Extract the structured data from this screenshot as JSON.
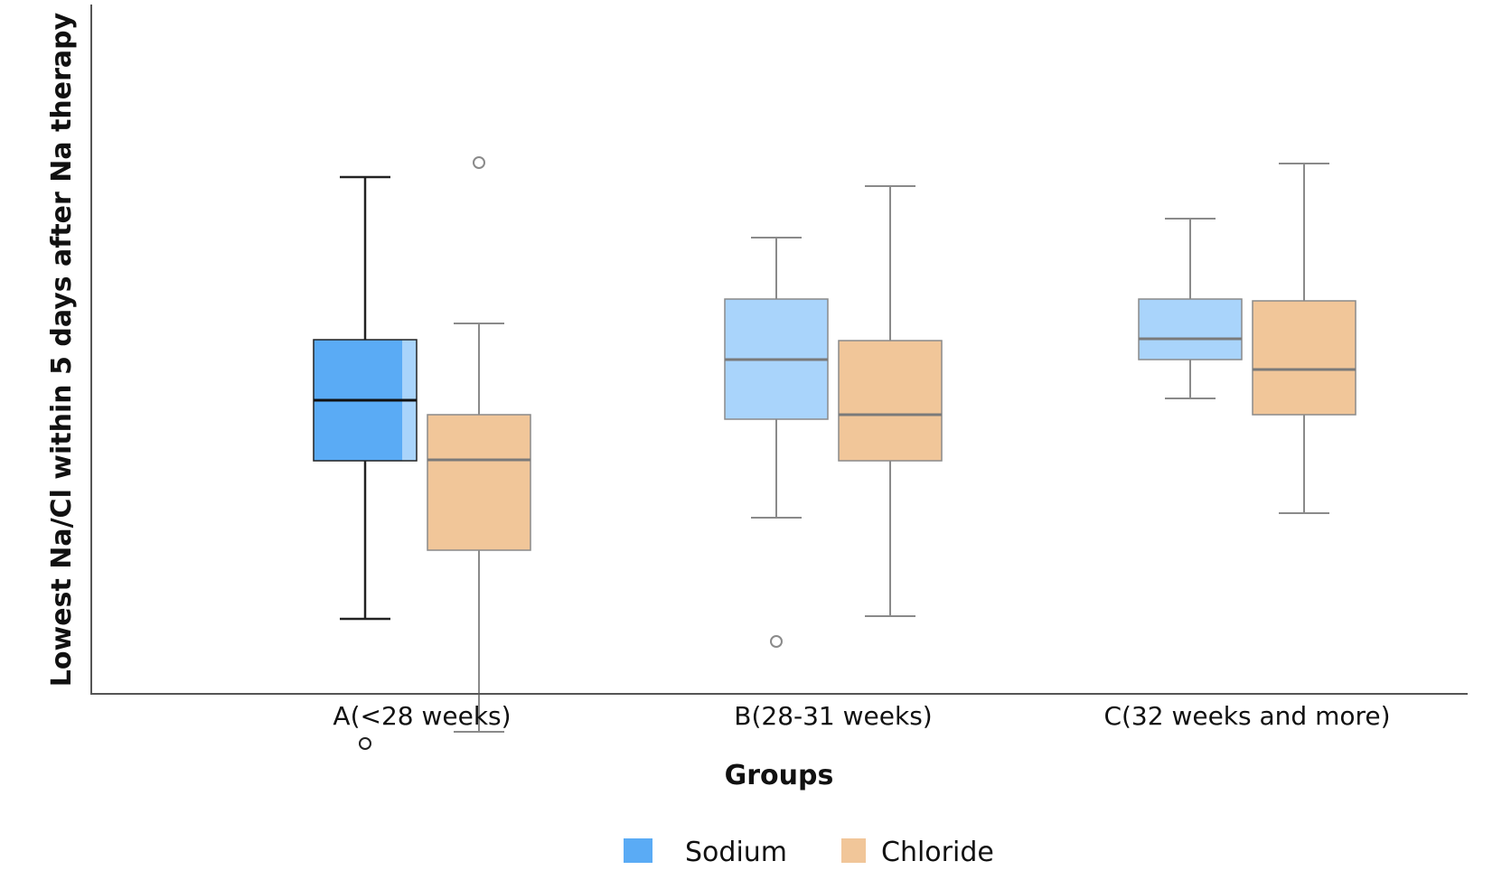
{
  "chart_data": {
    "type": "boxplot",
    "title": "",
    "xlabel": "Groups",
    "ylabel": "Lowest Na/Cl within 5 days after Na therapy",
    "ylim": [
      0,
      100
    ],
    "y_ticks_shown": false,
    "grid": false,
    "legend_position": "bottom",
    "categories": [
      "A(<28 weeks)",
      "B(28-31 weeks)",
      "C(32 weeks and more)"
    ],
    "series": [
      {
        "name": "Sodium",
        "color": "#5aabf5",
        "light_color": "#a9d4fb",
        "boxes": [
          {
            "whisker_low": 31.5,
            "q1": 49,
            "median": 55.7,
            "q3": 62.4,
            "whisker_high": 80.4,
            "outliers": [
              17.7
            ]
          },
          {
            "whisker_low": 42.7,
            "q1": 53.6,
            "median": 60.2,
            "q3": 66.9,
            "whisker_high": 73.7,
            "outliers": [
              29
            ]
          },
          {
            "whisker_low": 55.9,
            "q1": 60.2,
            "median": 62.5,
            "q3": 66.9,
            "whisker_high": 75.8,
            "outliers": []
          }
        ]
      },
      {
        "name": "Chloride",
        "color": "#f1c699",
        "light_color": "#f1c699",
        "boxes": [
          {
            "whisker_low": 19,
            "q1": 39.1,
            "median": 49.1,
            "q3": 54.1,
            "whisker_high": 64.2,
            "outliers": [
              82
            ]
          },
          {
            "whisker_low": 31.8,
            "q1": 49,
            "median": 54.1,
            "q3": 62.3,
            "whisker_high": 79.4,
            "outliers": []
          },
          {
            "whisker_low": 43.2,
            "q1": 54.1,
            "median": 59.1,
            "q3": 66.7,
            "whisker_high": 81.9,
            "outliers": []
          }
        ]
      }
    ]
  },
  "legend": {
    "items": [
      {
        "label": "Sodium",
        "color": "#5aabf5"
      },
      {
        "label": "Chloride",
        "color": "#f1c699"
      }
    ]
  }
}
